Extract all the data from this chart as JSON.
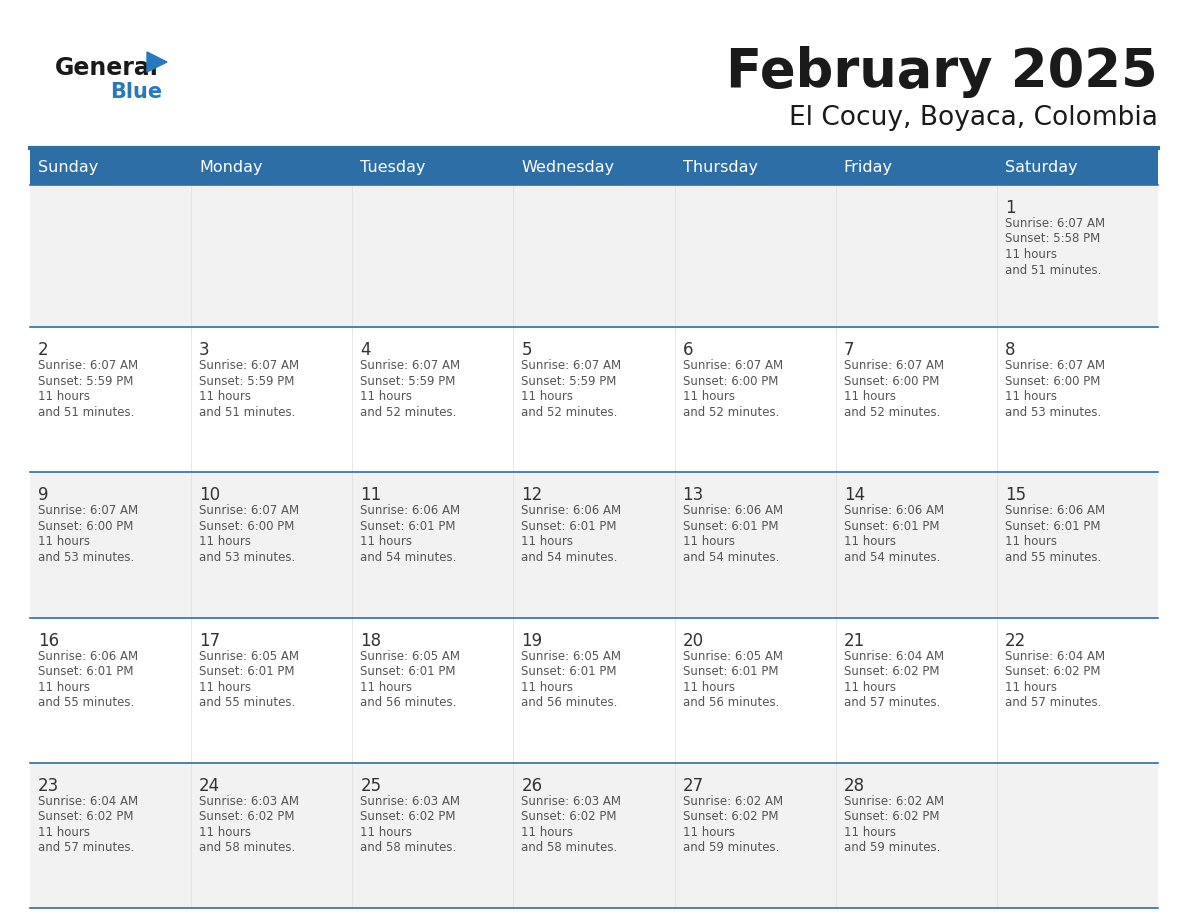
{
  "title": "February 2025",
  "subtitle": "El Cocuy, Boyaca, Colombia",
  "days_of_week": [
    "Sunday",
    "Monday",
    "Tuesday",
    "Wednesday",
    "Thursday",
    "Friday",
    "Saturday"
  ],
  "header_bg": "#2E6EA6",
  "header_text": "#FFFFFF",
  "cell_bg_odd": "#F2F2F2",
  "cell_bg_even": "#FFFFFF",
  "row_border_color": "#2E6EA6",
  "day_number_color": "#333333",
  "text_color": "#555555",
  "title_color": "#1a1a1a",
  "logo_text_color": "#1a1a1a",
  "logo_blue_color": "#2878BE",
  "calendar_data": [
    [
      null,
      null,
      null,
      null,
      null,
      null,
      {
        "day": 1,
        "sunrise": "6:07 AM",
        "sunset": "5:58 PM",
        "daylight": "11 hours and 51 minutes."
      }
    ],
    [
      {
        "day": 2,
        "sunrise": "6:07 AM",
        "sunset": "5:59 PM",
        "daylight": "11 hours and 51 minutes."
      },
      {
        "day": 3,
        "sunrise": "6:07 AM",
        "sunset": "5:59 PM",
        "daylight": "11 hours and 51 minutes."
      },
      {
        "day": 4,
        "sunrise": "6:07 AM",
        "sunset": "5:59 PM",
        "daylight": "11 hours and 52 minutes."
      },
      {
        "day": 5,
        "sunrise": "6:07 AM",
        "sunset": "5:59 PM",
        "daylight": "11 hours and 52 minutes."
      },
      {
        "day": 6,
        "sunrise": "6:07 AM",
        "sunset": "6:00 PM",
        "daylight": "11 hours and 52 minutes."
      },
      {
        "day": 7,
        "sunrise": "6:07 AM",
        "sunset": "6:00 PM",
        "daylight": "11 hours and 52 minutes."
      },
      {
        "day": 8,
        "sunrise": "6:07 AM",
        "sunset": "6:00 PM",
        "daylight": "11 hours and 53 minutes."
      }
    ],
    [
      {
        "day": 9,
        "sunrise": "6:07 AM",
        "sunset": "6:00 PM",
        "daylight": "11 hours and 53 minutes."
      },
      {
        "day": 10,
        "sunrise": "6:07 AM",
        "sunset": "6:00 PM",
        "daylight": "11 hours and 53 minutes."
      },
      {
        "day": 11,
        "sunrise": "6:06 AM",
        "sunset": "6:01 PM",
        "daylight": "11 hours and 54 minutes."
      },
      {
        "day": 12,
        "sunrise": "6:06 AM",
        "sunset": "6:01 PM",
        "daylight": "11 hours and 54 minutes."
      },
      {
        "day": 13,
        "sunrise": "6:06 AM",
        "sunset": "6:01 PM",
        "daylight": "11 hours and 54 minutes."
      },
      {
        "day": 14,
        "sunrise": "6:06 AM",
        "sunset": "6:01 PM",
        "daylight": "11 hours and 54 minutes."
      },
      {
        "day": 15,
        "sunrise": "6:06 AM",
        "sunset": "6:01 PM",
        "daylight": "11 hours and 55 minutes."
      }
    ],
    [
      {
        "day": 16,
        "sunrise": "6:06 AM",
        "sunset": "6:01 PM",
        "daylight": "11 hours and 55 minutes."
      },
      {
        "day": 17,
        "sunrise": "6:05 AM",
        "sunset": "6:01 PM",
        "daylight": "11 hours and 55 minutes."
      },
      {
        "day": 18,
        "sunrise": "6:05 AM",
        "sunset": "6:01 PM",
        "daylight": "11 hours and 56 minutes."
      },
      {
        "day": 19,
        "sunrise": "6:05 AM",
        "sunset": "6:01 PM",
        "daylight": "11 hours and 56 minutes."
      },
      {
        "day": 20,
        "sunrise": "6:05 AM",
        "sunset": "6:01 PM",
        "daylight": "11 hours and 56 minutes."
      },
      {
        "day": 21,
        "sunrise": "6:04 AM",
        "sunset": "6:02 PM",
        "daylight": "11 hours and 57 minutes."
      },
      {
        "day": 22,
        "sunrise": "6:04 AM",
        "sunset": "6:02 PM",
        "daylight": "11 hours and 57 minutes."
      }
    ],
    [
      {
        "day": 23,
        "sunrise": "6:04 AM",
        "sunset": "6:02 PM",
        "daylight": "11 hours and 57 minutes."
      },
      {
        "day": 24,
        "sunrise": "6:03 AM",
        "sunset": "6:02 PM",
        "daylight": "11 hours and 58 minutes."
      },
      {
        "day": 25,
        "sunrise": "6:03 AM",
        "sunset": "6:02 PM",
        "daylight": "11 hours and 58 minutes."
      },
      {
        "day": 26,
        "sunrise": "6:03 AM",
        "sunset": "6:02 PM",
        "daylight": "11 hours and 58 minutes."
      },
      {
        "day": 27,
        "sunrise": "6:02 AM",
        "sunset": "6:02 PM",
        "daylight": "11 hours and 59 minutes."
      },
      {
        "day": 28,
        "sunrise": "6:02 AM",
        "sunset": "6:02 PM",
        "daylight": "11 hours and 59 minutes."
      },
      null
    ]
  ]
}
